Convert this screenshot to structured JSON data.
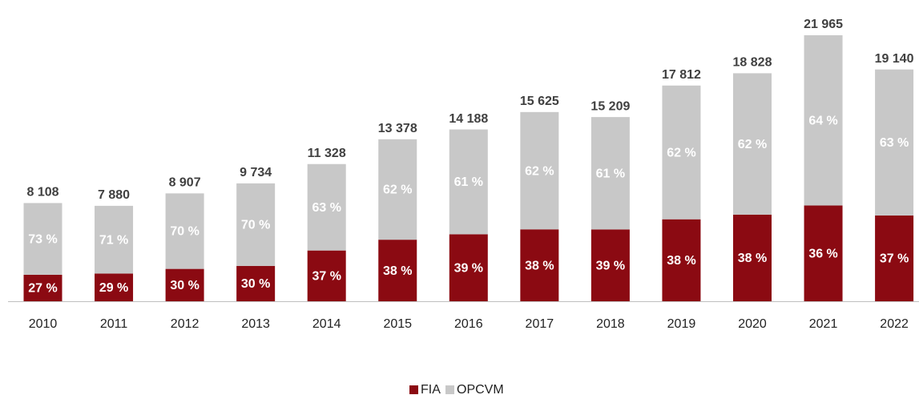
{
  "chart_data": {
    "type": "bar",
    "stacked": true,
    "categories": [
      "2010",
      "2011",
      "2012",
      "2013",
      "2014",
      "2015",
      "2016",
      "2017",
      "2018",
      "2019",
      "2020",
      "2021",
      "2022"
    ],
    "totals": {
      "values": [
        8108,
        7880,
        8907,
        9734,
        11328,
        13378,
        14188,
        15625,
        15209,
        17812,
        18828,
        21965,
        19140
      ],
      "value_labels": [
        "8 108",
        "7 880",
        "8 907",
        "9 734",
        "11 328",
        "13 378",
        "14 188",
        "15 625",
        "15 209",
        "17 812",
        "18 828",
        "21 965",
        "19 140"
      ]
    },
    "series": [
      {
        "name": "FIA",
        "color": "#8b0a12",
        "values": [
          27,
          29,
          30,
          30,
          37,
          38,
          39,
          38,
          39,
          38,
          38,
          36,
          37
        ],
        "value_labels": [
          "27 %",
          "29 %",
          "30 %",
          "30 %",
          "37 %",
          "38 %",
          "39 %",
          "38 %",
          "39 %",
          "38 %",
          "38 %",
          "36 %",
          "37 %"
        ]
      },
      {
        "name": "OPCVM",
        "color": "#c8c8c8",
        "values": [
          73,
          71,
          70,
          70,
          63,
          62,
          61,
          62,
          61,
          62,
          62,
          64,
          63
        ],
        "value_labels": [
          "73 %",
          "71 %",
          "70 %",
          "70 %",
          "63 %",
          "62 %",
          "61 %",
          "62 %",
          "61 %",
          "62 %",
          "62 %",
          "64 %",
          "63 %"
        ]
      }
    ],
    "legend": "bottom"
  }
}
